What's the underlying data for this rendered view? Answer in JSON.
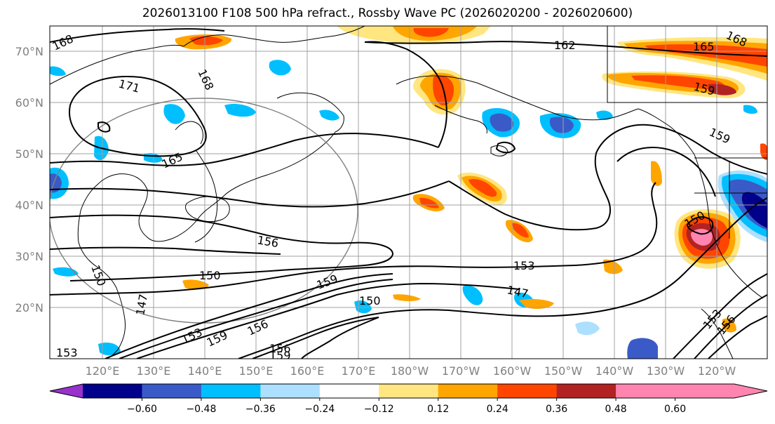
{
  "title": "2026013100 F108 500 hPa refract., Rossby Wave PC (2026020200 - 2026020600)",
  "map": {
    "lat_labels": [
      "70°N",
      "60°N",
      "50°N",
      "40°N",
      "30°N",
      "20°N"
    ],
    "lon_labels": [
      "120°E",
      "130°E",
      "140°E",
      "150°E",
      "160°E",
      "170°E",
      "180°W",
      "170°W",
      "160°W",
      "150°W",
      "140°W",
      "130°W",
      "120°W"
    ],
    "contour_labels": [
      {
        "id": "c1",
        "text": "168"
      },
      {
        "id": "c2",
        "text": "171"
      },
      {
        "id": "c3",
        "text": "168"
      },
      {
        "id": "c4",
        "text": "165"
      },
      {
        "id": "c5",
        "text": "162"
      },
      {
        "id": "c6",
        "text": "165"
      },
      {
        "id": "c7",
        "text": "168"
      },
      {
        "id": "c8",
        "text": "159"
      },
      {
        "id": "c9",
        "text": "159"
      },
      {
        "id": "c10",
        "text": "156"
      },
      {
        "id": "c11",
        "text": "150"
      },
      {
        "id": "c12",
        "text": "153"
      },
      {
        "id": "c13",
        "text": "150"
      },
      {
        "id": "c14",
        "text": "159"
      },
      {
        "id": "c15",
        "text": "150"
      },
      {
        "id": "c16",
        "text": "147"
      },
      {
        "id": "c17",
        "text": "147"
      },
      {
        "id": "c18",
        "text": "150"
      },
      {
        "id": "c19",
        "text": "153"
      },
      {
        "id": "c20",
        "text": "159"
      },
      {
        "id": "c21",
        "text": "156"
      },
      {
        "id": "c22",
        "text": "156"
      },
      {
        "id": "c23",
        "text": "159"
      },
      {
        "id": "c24",
        "text": "153"
      },
      {
        "id": "c25",
        "text": "153"
      },
      {
        "id": "c26",
        "text": "156"
      }
    ]
  },
  "colorbar": {
    "tick_labels": [
      "−0.60",
      "−0.48",
      "−0.36",
      "−0.24",
      "−0.12",
      "0.12",
      "0.24",
      "0.36",
      "0.48",
      "0.60"
    ],
    "colors": [
      "#9932CC",
      "#00008B",
      "#3A5BC7",
      "#00BFFF",
      "#ADDFFF",
      "#FFFFFF",
      "#FFE680",
      "#FFA500",
      "#FF4500",
      "#B22222",
      "#FF85B0",
      "#FF85B0"
    ]
  }
}
